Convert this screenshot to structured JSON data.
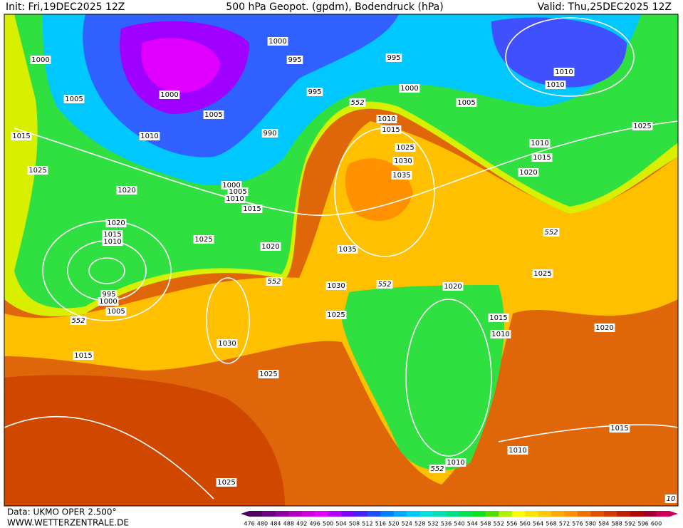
{
  "header": {
    "init": "Init: Fri,19DEC2025 12Z",
    "title": "500 hPa Geopot. (gpdm), Bodendruck (hPa)",
    "valid": "Valid: Thu,25DEC2025 12Z"
  },
  "footer": {
    "data": "Data: UKMO OPER 2.500°",
    "site": "WWW.WETTERZENTRALE.DE"
  },
  "contour_labels": [
    1000,
    1000,
    995,
    995,
    1000,
    995,
    1005,
    1000,
    1005,
    1005,
    1010,
    1010,
    1015,
    1010,
    990,
    1010,
    1015,
    1025,
    1025,
    1010,
    1015,
    1030,
    1035,
    1020,
    1025,
    1020,
    1000,
    1005,
    1010,
    1015,
    1020,
    1015,
    1010,
    1025,
    1020,
    1035,
    552,
    1025,
    552,
    1030,
    552,
    1020,
    995,
    1000,
    1005,
    552,
    1025,
    1015,
    1010,
    1020,
    1030,
    1015,
    1025,
    1015,
    1010,
    552,
    1010,
    1025,
    10,
    552
  ],
  "scale": {
    "values": [
      476,
      480,
      484,
      488,
      492,
      496,
      500,
      504,
      508,
      512,
      516,
      520,
      524,
      528,
      532,
      536,
      540,
      544,
      548,
      552,
      556,
      560,
      564,
      568,
      572,
      576,
      580,
      584,
      588,
      592,
      596,
      600
    ],
    "colors": [
      "#4b0060",
      "#6a0080",
      "#8a00a0",
      "#b000c0",
      "#d000e0",
      "#e800ff",
      "#b000ff",
      "#7a00ff",
      "#4a20ff",
      "#1e50ff",
      "#0080ff",
      "#00a8ff",
      "#00c8ff",
      "#00e0e0",
      "#00e0b0",
      "#00e080",
      "#00e050",
      "#10e020",
      "#50e000",
      "#b0f000",
      "#ffff00",
      "#ffe400",
      "#ffc800",
      "#ffac00",
      "#ff9000",
      "#f07000",
      "#e05000",
      "#d03c00",
      "#c02000",
      "#b00800",
      "#a0002a",
      "#d0005a"
    ]
  }
}
